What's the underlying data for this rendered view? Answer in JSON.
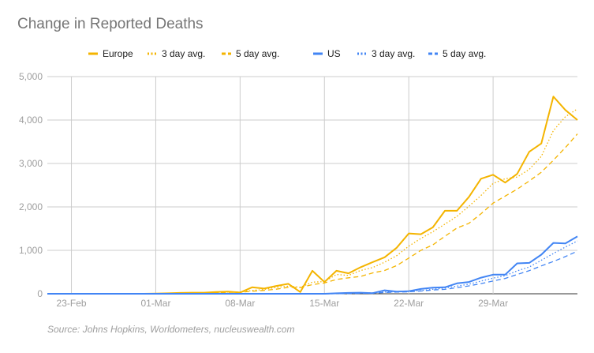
{
  "chart_data": {
    "type": "line",
    "title": "Change in Reported Deaths",
    "source": "Source: Johns Hopkins, Worldometers, nucleuswealth.com",
    "xlabel": "",
    "ylabel": "",
    "ylim": [
      0,
      5000
    ],
    "y_ticks": [
      "0",
      "1,000",
      "2,000",
      "3,000",
      "4,000",
      "5,000"
    ],
    "y_tick_values": [
      0,
      1000,
      2000,
      3000,
      4000,
      5000
    ],
    "x_ticks": [
      "23-Feb",
      "01-Mar",
      "08-Mar",
      "15-Mar",
      "22-Mar",
      "29-Mar"
    ],
    "x_tick_dates": [
      "2020-02-23",
      "2020-03-01",
      "2020-03-08",
      "2020-03-15",
      "2020-03-22",
      "2020-03-29"
    ],
    "grid": true,
    "legend_position": "top",
    "x": [
      "2020-02-21",
      "2020-02-22",
      "2020-02-23",
      "2020-02-24",
      "2020-02-25",
      "2020-02-26",
      "2020-02-27",
      "2020-02-28",
      "2020-02-29",
      "2020-03-01",
      "2020-03-02",
      "2020-03-03",
      "2020-03-04",
      "2020-03-05",
      "2020-03-06",
      "2020-03-07",
      "2020-03-08",
      "2020-03-09",
      "2020-03-10",
      "2020-03-11",
      "2020-03-12",
      "2020-03-13",
      "2020-03-14",
      "2020-03-15",
      "2020-03-16",
      "2020-03-17",
      "2020-03-18",
      "2020-03-19",
      "2020-03-20",
      "2020-03-21",
      "2020-03-22",
      "2020-03-23",
      "2020-03-24",
      "2020-03-25",
      "2020-03-26",
      "2020-03-27",
      "2020-03-28",
      "2020-03-29",
      "2020-03-30",
      "2020-03-31",
      "2020-04-01",
      "2020-04-02",
      "2020-04-03",
      "2020-04-04",
      "2020-04-05"
    ],
    "series": [
      {
        "name": "Europe",
        "color": "#f4b400",
        "style": "solid",
        "values": [
          0,
          0,
          0,
          0,
          0,
          0,
          0,
          0,
          0,
          5,
          10,
          20,
          25,
          25,
          40,
          50,
          30,
          150,
          120,
          180,
          230,
          40,
          530,
          270,
          530,
          470,
          610,
          730,
          840,
          1060,
          1390,
          1370,
          1530,
          1910,
          1910,
          2230,
          2650,
          2740,
          2560,
          2760,
          3270,
          3460,
          4540,
          4230,
          4000
        ]
      },
      {
        "name": "3 day avg.",
        "color": "#f4b400",
        "style": "dotted",
        "values": [
          0,
          0,
          0,
          0,
          0,
          0,
          0,
          0,
          0,
          2,
          5,
          12,
          18,
          23,
          30,
          38,
          40,
          77,
          100,
          150,
          177,
          150,
          267,
          280,
          443,
          423,
          537,
          603,
          727,
          877,
          1097,
          1273,
          1430,
          1603,
          1783,
          2017,
          2263,
          2540,
          2650,
          2687,
          2863,
          3163,
          3757,
          4077,
          4257
        ]
      },
      {
        "name": "5 day avg.",
        "color": "#f4b400",
        "style": "dashed",
        "values": [
          0,
          0,
          0,
          0,
          0,
          0,
          0,
          0,
          0,
          1,
          3,
          7,
          12,
          17,
          24,
          32,
          34,
          59,
          78,
          106,
          150,
          144,
          210,
          250,
          330,
          368,
          400,
          480,
          536,
          650,
          822,
          1000,
          1126,
          1324,
          1514,
          1622,
          1844,
          2088,
          2250,
          2408,
          2596,
          2798,
          3074,
          3366,
          3680
        ]
      },
      {
        "name": "US",
        "color": "#4285f4",
        "style": "solid",
        "values": [
          0,
          0,
          0,
          0,
          0,
          0,
          0,
          0,
          0,
          0,
          0,
          0,
          0,
          0,
          0,
          0,
          0,
          0,
          0,
          0,
          0,
          0,
          0,
          0,
          10,
          20,
          25,
          15,
          80,
          50,
          60,
          110,
          140,
          150,
          240,
          270,
          370,
          440,
          440,
          700,
          710,
          900,
          1170,
          1160,
          1320
        ]
      },
      {
        "name": "3 day avg.",
        "color": "#4285f4",
        "style": "dotted",
        "values": [
          0,
          0,
          0,
          0,
          0,
          0,
          0,
          0,
          0,
          0,
          0,
          0,
          0,
          0,
          0,
          0,
          0,
          0,
          0,
          0,
          0,
          0,
          0,
          0,
          3,
          10,
          18,
          20,
          40,
          48,
          63,
          73,
          103,
          133,
          177,
          220,
          293,
          360,
          417,
          527,
          617,
          770,
          927,
          1077,
          1217
        ]
      },
      {
        "name": "5 day avg.",
        "color": "#4285f4",
        "style": "dashed",
        "values": [
          0,
          0,
          0,
          0,
          0,
          0,
          0,
          0,
          0,
          0,
          0,
          0,
          0,
          0,
          0,
          0,
          0,
          0,
          0,
          0,
          0,
          0,
          0,
          0,
          2,
          6,
          11,
          14,
          30,
          38,
          46,
          63,
          88,
          102,
          140,
          182,
          234,
          294,
          352,
          444,
          532,
          642,
          744,
          856,
          982
        ]
      }
    ]
  }
}
